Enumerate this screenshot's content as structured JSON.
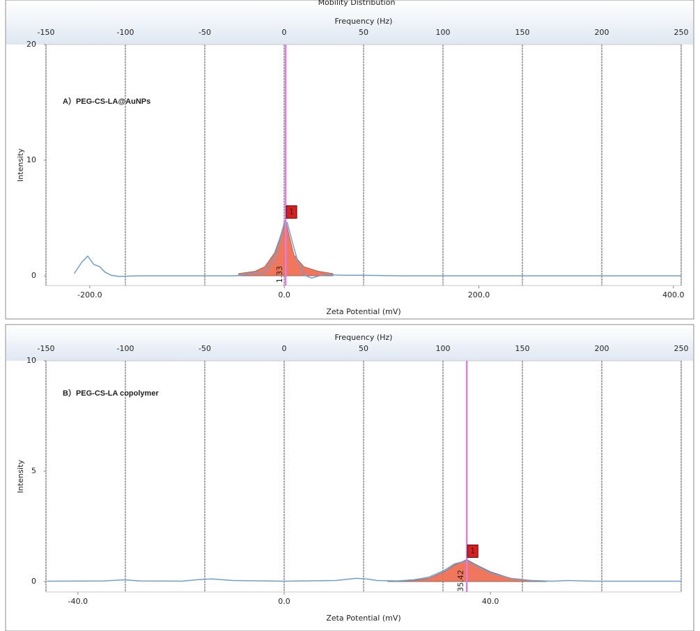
{
  "chart_data": [
    {
      "type": "line",
      "title": "Mobility Distribution",
      "x2label": "Frequency (Hz)",
      "xlabel": "Zeta Potential (mV)",
      "ylabel": "Intensity",
      "annotation": "A）PEG-CS-LA@AuNPs",
      "xlim": [
        -245,
        408
      ],
      "xticks": [
        {
          "value": -200,
          "label": "-200.0"
        },
        {
          "value": 0,
          "label": "0.0"
        },
        {
          "value": 200,
          "label": "200.0"
        },
        {
          "value": 400,
          "label": "400.0"
        }
      ],
      "x2lim": [
        -150,
        250
      ],
      "x2ticks": [
        -150,
        -100,
        -50,
        0,
        50,
        100,
        150,
        200,
        250
      ],
      "ylim": [
        -0.84,
        20
      ],
      "yticks": [
        0,
        10,
        20
      ],
      "grid": true,
      "peak": 1.33,
      "peak_marker": "1",
      "peak_color": "#e27ce2",
      "series": [
        {
          "style": "area",
          "color": "#f0684a",
          "x": [
            -47,
            -30,
            -20,
            -10,
            -5,
            0,
            1.33,
            5,
            10,
            20,
            35,
            50
          ],
          "values": [
            0.2,
            0.4,
            0.8,
            2,
            3.2,
            4.6,
            4.8,
            3.5,
            1.8,
            0.8,
            0.4,
            0.2
          ]
        },
        {
          "style": "line",
          "color": "#6e9fd4",
          "x": [
            -216,
            -208,
            -202,
            -196,
            -190,
            -184,
            -178,
            -170,
            -150,
            -50,
            -20,
            -10,
            -5,
            0,
            3,
            8,
            14,
            20,
            28,
            36,
            45,
            60,
            80,
            120,
            200,
            408
          ],
          "values": [
            0.2,
            1.2,
            1.7,
            1.0,
            0.8,
            0.3,
            0.05,
            -0.05,
            0,
            0,
            0.3,
            1.5,
            3,
            4.6,
            4.6,
            3,
            1.2,
            0.1,
            -0.2,
            0,
            0.1,
            0.05,
            0.05,
            0,
            0,
            0
          ]
        }
      ]
    },
    {
      "type": "line",
      "x2label": "Frequency (Hz)",
      "xlabel": "Zeta Potential (mV)",
      "ylabel": "Intensity",
      "annotation": "B）PEG-CS-LA copolymer",
      "xlim": [
        -46.2,
        77
      ],
      "xticks": [
        {
          "value": -40,
          "label": "-40.0"
        },
        {
          "value": 0,
          "label": "0.0"
        },
        {
          "value": 40,
          "label": "40.0"
        }
      ],
      "x2lim": [
        -150,
        250
      ],
      "x2ticks": [
        -150,
        -100,
        -50,
        0,
        50,
        100,
        150,
        200,
        250
      ],
      "ylim": [
        -0.47,
        10
      ],
      "yticks": [
        0,
        5,
        10
      ],
      "grid": true,
      "peak": 35.42,
      "peak_marker": "1",
      "peak_color": "#e27ce2",
      "series": [
        {
          "style": "area",
          "color": "#f0684a",
          "x": [
            20,
            25,
            28,
            31,
            33,
            35.42,
            37,
            40,
            44,
            48,
            51
          ],
          "values": [
            0,
            0.05,
            0.15,
            0.45,
            0.75,
            1.0,
            0.8,
            0.45,
            0.15,
            0.05,
            0
          ]
        },
        {
          "style": "line",
          "color": "#6e9fd4",
          "x": [
            -46,
            -35,
            -31,
            -28,
            -20,
            -16,
            -14,
            -10,
            0,
            10,
            14,
            16,
            18,
            22,
            25,
            28,
            31,
            33,
            35.42,
            37,
            40,
            44,
            48,
            52,
            55,
            60,
            77
          ],
          "values": [
            0.02,
            0.03,
            0.08,
            0.03,
            0.02,
            0.1,
            0.12,
            0.05,
            0.02,
            0.05,
            0.15,
            0.12,
            0.05,
            0.03,
            0.08,
            0.2,
            0.5,
            0.8,
            0.95,
            0.75,
            0.4,
            0.15,
            0.05,
            0.02,
            0.05,
            0.02,
            0.02
          ]
        }
      ]
    }
  ]
}
